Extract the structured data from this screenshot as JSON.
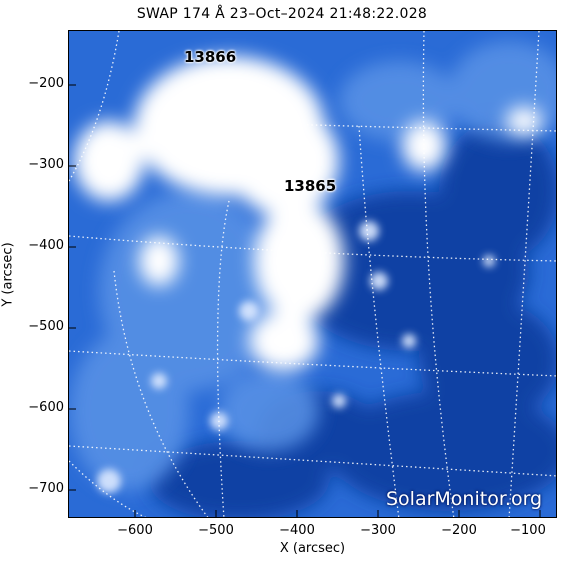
{
  "title": "SWAP 174 Å 23–Oct–2024 21:48:22.028",
  "axes": {
    "xlabel": "X (arcsec)",
    "ylabel": "Y (arcsec)",
    "xticks": [
      "−600",
      "−500",
      "−400",
      "−300",
      "−200",
      "−100"
    ],
    "yticks": [
      "−200",
      "−300",
      "−400",
      "−500",
      "−600",
      "−700"
    ]
  },
  "regions": [
    "13866",
    "13865"
  ],
  "watermark": "SolarMonitor.org",
  "colors": {
    "background": "#1d5fd0",
    "dark": "#0a3a9e",
    "bright": "#ffffff"
  }
}
